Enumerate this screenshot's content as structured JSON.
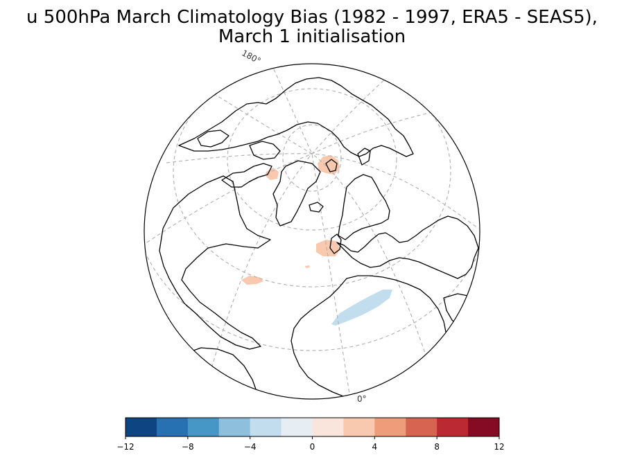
{
  "title": {
    "line1": "u 500hPa March Climatology Bias (1982 - 1997, ERA5 - SEAS5),",
    "line2": "March 1 initialisation"
  },
  "map": {
    "projection": "orthographic",
    "gridlines": "dashed",
    "meridian_labels": [
      "180°",
      "0°"
    ],
    "bias_patches": [
      {
        "region": "Svalbard / Barents",
        "sign": "positive",
        "level": "2 to 4",
        "color": "#f8c9ae"
      },
      {
        "region": "Baffin Bay",
        "sign": "positive",
        "level": "2 to 4",
        "color": "#f8c9ae"
      },
      {
        "region": "Iceland / Norwegian Sea",
        "sign": "positive",
        "level": "2 to 4",
        "color": "#f8c9ae"
      },
      {
        "region": "Central North Atlantic",
        "sign": "positive",
        "level": "2 to 4",
        "color": "#f8c9ae"
      },
      {
        "region": "Subtropical Atlantic / Mediterranean",
        "sign": "negative",
        "level": "-4 to -2",
        "color": "#c2dded"
      }
    ]
  },
  "colorbar": {
    "colors": [
      "#0e4481",
      "#2770b1",
      "#4797c6",
      "#8ebfdd",
      "#c2dded",
      "#e6eef4",
      "#f9e5dc",
      "#f8c9ae",
      "#ef9c7a",
      "#d76450",
      "#bb2932",
      "#850a23"
    ],
    "tick_labels": [
      "−12",
      "−8",
      "−4",
      "0",
      "4",
      "8",
      "12"
    ],
    "tick_values": [
      -12,
      -8,
      -4,
      0,
      4,
      8,
      12
    ],
    "min": -12,
    "max": 12
  }
}
